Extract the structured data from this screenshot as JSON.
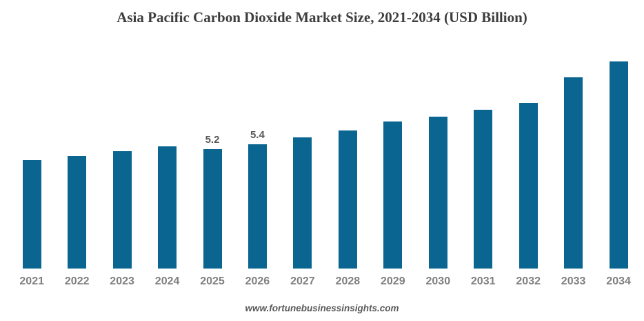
{
  "page": {
    "footer_label": "www.fortunebusinessinsights.com"
  },
  "colors": {
    "bar": "#0A6690",
    "title_text": "#3D3D3D",
    "axis_tick_text": "#7F7F7F",
    "data_label_text": "#595959",
    "background": "#FFFFFF"
  },
  "chart_data": {
    "type": "bar",
    "title": "Asia Pacific Carbon Dioxide Market Size, 2021-2034 (USD Billion)",
    "unit": "USD Billion",
    "categories": [
      "2021",
      "2022",
      "2023",
      "2024",
      "2025",
      "2026",
      "2027",
      "2028",
      "2029",
      "2030",
      "2031",
      "2032",
      "2033",
      "2034"
    ],
    "values": [
      4.7,
      4.9,
      5.1,
      5.3,
      5.2,
      5.4,
      5.7,
      6.0,
      6.4,
      6.6,
      6.9,
      7.2,
      8.3,
      9.0
    ],
    "data_labels": [
      "",
      "",
      "",
      "",
      "5.2",
      "5.4",
      "",
      "",
      "",
      "",
      "",
      "",
      "",
      ""
    ],
    "xlabel": "",
    "ylabel": "",
    "ylim": [
      0,
      9.5
    ],
    "grid": false,
    "legend_position": "none",
    "axis_lines": false
  }
}
